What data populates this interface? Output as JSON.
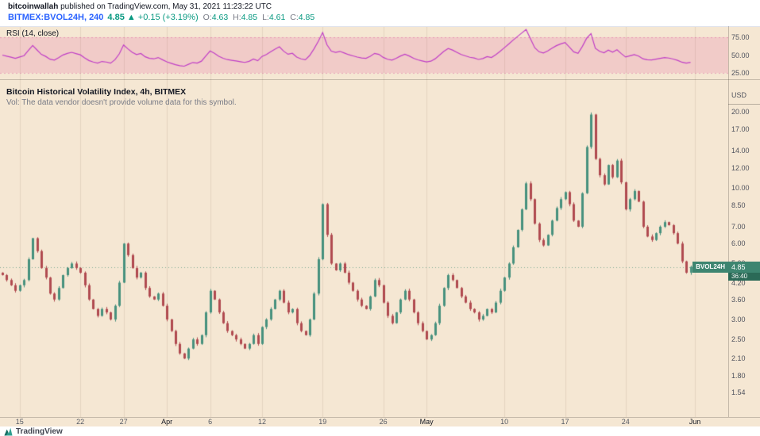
{
  "header": {
    "author": "bitcoinwallah",
    "published": " published on TradingView.com, May 31, 2021 11:23:22 UTC",
    "symbol": "BITMEX:BVOL24H, 240",
    "price": "4.85",
    "change": "▲ +0.15 (+3.19%)",
    "ohlc": [
      {
        "k": "O",
        "v": "4.63"
      },
      {
        "k": "H",
        "v": "4.85"
      },
      {
        "k": "L",
        "v": "4.61"
      },
      {
        "k": "C",
        "v": "4.85"
      }
    ]
  },
  "rsi": {
    "label": "RSI (14, close)",
    "period": 14,
    "band": [
      25,
      75
    ],
    "ticks": [
      {
        "label": "75.00",
        "value": 75
      },
      {
        "label": "50.00",
        "value": 50
      },
      {
        "label": "25.00",
        "value": 25
      }
    ],
    "line_color": "#bf3dc6",
    "band_color": "rgba(227,55,143,0.16)",
    "band_edge": "rgba(214,70,150,0.4)"
  },
  "main": {
    "title": "Bitcoin Historical Volatility Index, 4h, BITMEX",
    "vol_note": "Vol: The data vendor doesn't provide volume data for this symbol.",
    "currency": "USD",
    "tag_symbol": "BVOL24H",
    "tag_price": "4.85",
    "countdown": "36:40",
    "ticks": [
      "20.00",
      "17.00",
      "14.00",
      "12.00",
      "10.00",
      "8.50",
      "7.00",
      "6.00",
      "5.00",
      "4.20",
      "3.60",
      "3.00",
      "2.50",
      "2.10",
      "1.80",
      "1.54"
    ]
  },
  "footer": {
    "brand": "TradingView"
  },
  "colors": {
    "background": "#f5e7d3",
    "up": "#47917e",
    "down": "#b04a50",
    "grid": "rgba(90,60,30,0.10)",
    "price_line": "rgba(61,133,112,0.6)",
    "symbol_blue": "#2962ff",
    "value_green": "#089981",
    "tag_bg": "#3d8570"
  },
  "chart_data": {
    "type": "candlestick",
    "symbol": "BITMEX:BVOL24H",
    "interval": "240",
    "title": "Bitcoin Historical Volatility Index, 4h, BITMEX",
    "y_scale": "log",
    "y_unit": "USD",
    "ylim": [
      1.2,
      27
    ],
    "y_ticks": [
      20,
      17,
      14,
      12,
      10,
      8.5,
      7,
      6,
      5,
      4.2,
      3.6,
      3,
      2.5,
      2.1,
      1.8,
      1.54
    ],
    "x_labels": [
      {
        "label": "15",
        "day": 2
      },
      {
        "label": "22",
        "day": 9
      },
      {
        "label": "27",
        "day": 14
      },
      {
        "label": "Apr",
        "day": 19,
        "month": true
      },
      {
        "label": "6",
        "day": 24
      },
      {
        "label": "12",
        "day": 30
      },
      {
        "label": "19",
        "day": 37
      },
      {
        "label": "26",
        "day": 44
      },
      {
        "label": "May",
        "day": 49,
        "month": true
      },
      {
        "label": "10",
        "day": 58
      },
      {
        "label": "17",
        "day": 65
      },
      {
        "label": "24",
        "day": 72
      },
      {
        "label": "Jun",
        "day": 80,
        "month": true
      }
    ],
    "step_days": 0.5,
    "first_open": 4.6,
    "closes": [
      4.5,
      4.3,
      4.1,
      3.9,
      4.1,
      4.3,
      5.2,
      6.3,
      5.6,
      4.8,
      4.4,
      3.8,
      3.6,
      4.0,
      4.5,
      4.8,
      5.0,
      4.8,
      4.6,
      4.1,
      3.6,
      3.3,
      3.1,
      3.3,
      3.2,
      3.0,
      3.4,
      4.2,
      6.0,
      5.4,
      4.8,
      4.4,
      4.6,
      4.0,
      3.7,
      3.6,
      3.8,
      3.4,
      3.0,
      2.7,
      2.4,
      2.2,
      2.1,
      2.3,
      2.5,
      2.4,
      2.6,
      3.2,
      3.9,
      3.6,
      3.2,
      2.9,
      2.7,
      2.6,
      2.5,
      2.4,
      2.3,
      2.4,
      2.6,
      2.4,
      2.8,
      3.0,
      3.3,
      3.6,
      3.9,
      3.5,
      3.2,
      3.3,
      2.9,
      2.7,
      2.6,
      3.0,
      3.8,
      5.2,
      8.6,
      6.5,
      5.0,
      4.7,
      5.0,
      4.6,
      4.2,
      3.9,
      3.6,
      3.4,
      3.3,
      3.7,
      4.3,
      4.1,
      3.5,
      3.1,
      2.9,
      3.2,
      3.6,
      3.9,
      3.6,
      3.2,
      2.9,
      2.7,
      2.5,
      2.6,
      2.9,
      3.4,
      4.0,
      4.5,
      4.3,
      4.0,
      3.7,
      3.5,
      3.3,
      3.2,
      3.0,
      3.1,
      3.3,
      3.2,
      3.5,
      3.9,
      4.4,
      5.0,
      5.8,
      6.8,
      8.2,
      10.4,
      9.0,
      7.2,
      6.2,
      5.9,
      6.5,
      7.4,
      8.3,
      9.0,
      9.6,
      8.6,
      7.4,
      7.0,
      9.5,
      14.5,
      19.5,
      13.0,
      11.2,
      10.3,
      12.3,
      11.0,
      12.8,
      10.5,
      8.2,
      9.0,
      9.7,
      8.8,
      7.0,
      6.4,
      6.2,
      6.6,
      7.0,
      7.3,
      7.1,
      6.6,
      6.0,
      5.1,
      4.6,
      4.85
    ],
    "current_price": 4.85,
    "last_bar": {
      "open": 4.63,
      "high": 4.85,
      "low": 4.61,
      "close": 4.85,
      "change": "+0.15",
      "change_pct": "+3.19%"
    },
    "indicators": [
      {
        "name": "RSI",
        "params": "14, close",
        "pane": "upper"
      }
    ],
    "note": "close series estimated from pixels at ~12h resolution; candle OHLC derived with open = previous close"
  }
}
